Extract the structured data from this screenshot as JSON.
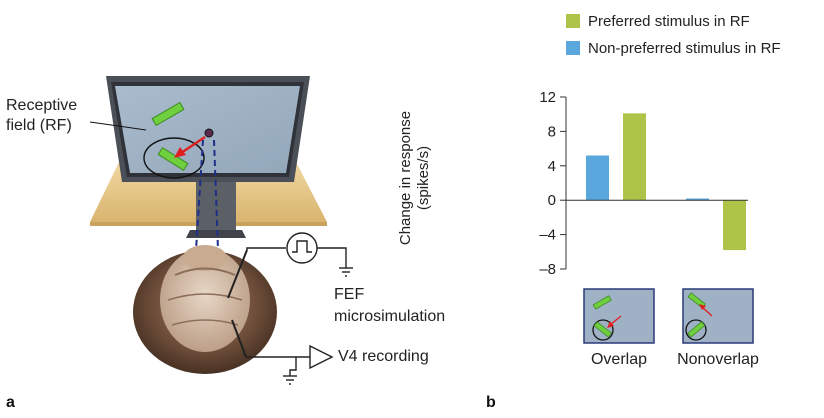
{
  "panel_a": {
    "letter": "a",
    "rf_label_line1": "Receptive",
    "rf_label_line2": "field (RF)",
    "fef_line1": "FEF",
    "fef_line2": "microsimulation",
    "v4_label": "V4 recording"
  },
  "panel_b": {
    "letter": "b",
    "conditions": [
      "Overlap",
      "Nonoverlap"
    ]
  },
  "chart_data": {
    "type": "bar",
    "categories": [
      "Overlap",
      "Nonoverlap"
    ],
    "series": [
      {
        "name": "Non-preferred stimulus in RF",
        "color": "#5aa7dd",
        "values": [
          5.2,
          0.2
        ]
      },
      {
        "name": "Preferred stimulus in RF",
        "color": "#adc449",
        "values": [
          10.1,
          -5.8
        ]
      }
    ],
    "title": "",
    "xlabel": "",
    "ylabel_line1": "Change in response",
    "ylabel_line2": "(spikes/s)",
    "ylim": [
      -8,
      12
    ],
    "yticks": [
      12,
      8,
      4,
      0,
      -4,
      -8
    ],
    "ytick_labels": [
      "12",
      "8",
      "4",
      "0",
      "–4",
      "–8"
    ],
    "legend": [
      "Preferred stimulus in RF",
      "Non-preferred stimulus in RF"
    ],
    "legend_position": "top",
    "grid": false
  },
  "colors": {
    "preferred": "#adc449",
    "nonpreferred": "#5aa7dd",
    "screen": "#9fb2c5",
    "stimulus": "#6fcf3e",
    "saccade_arrow": "#e02020",
    "table": "#e9cc8e",
    "hair": "#6e4e3a"
  }
}
